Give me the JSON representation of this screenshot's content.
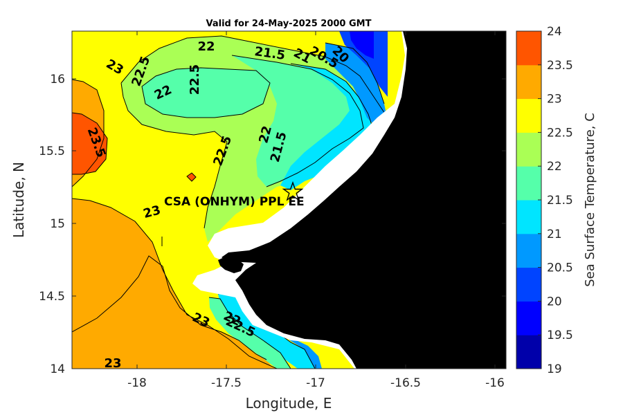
{
  "title": "Valid for 24-May-2025 2000 GMT",
  "x_axis": {
    "label": "Longitude, E",
    "ticks": [
      "-18",
      "-17.5",
      "-17",
      "-16.5",
      "-16"
    ]
  },
  "y_axis": {
    "label": "Latitude, N",
    "ticks": [
      "14",
      "14.5",
      "15",
      "15.5",
      "16"
    ]
  },
  "colorbar": {
    "label": "Sea Surface Temperature, C",
    "ticks": [
      "19",
      "19.5",
      "20",
      "20.5",
      "21",
      "21.5",
      "22",
      "22.5",
      "23",
      "23.5",
      "24"
    ],
    "colors": [
      "#0000aa",
      "#0000ff",
      "#0044ff",
      "#0099ff",
      "#00e5ff",
      "#55ffaa",
      "#aaff55",
      "#ffff00",
      "#ffaa00",
      "#ff5500"
    ]
  },
  "site": {
    "label": "CSA (ONHYM) PPL EE",
    "marker_icon": "star-icon"
  },
  "contour_labels": [
    "23",
    "22.5",
    "22",
    "22.5",
    "22",
    "21.5",
    "21",
    "20.5",
    "20",
    "23.5",
    "22.5",
    "22",
    "21.5",
    "23",
    "23",
    "22",
    "22.5",
    "23"
  ],
  "chart_data": {
    "type": "heatmap",
    "title": "Valid for 24-May-2025 2000 GMT",
    "xlabel": "Longitude, E",
    "ylabel": "Latitude, N",
    "xlim": [
      -18.35,
      -15.92
    ],
    "ylim": [
      14,
      16.34
    ],
    "xticks": [
      -18,
      -17.5,
      -17,
      -16.5,
      -16
    ],
    "yticks": [
      14,
      14.5,
      15,
      15.5,
      16
    ],
    "colorbar_label": "Sea Surface Temperature, C",
    "colorbar_range": [
      19,
      24
    ],
    "colorbar_step": 0.5,
    "grid": false,
    "land_color": "#000000",
    "site_marker": {
      "label": "CSA (ONHYM) PPL EE",
      "lon": -17.1,
      "lat": 15.22
    }
  }
}
